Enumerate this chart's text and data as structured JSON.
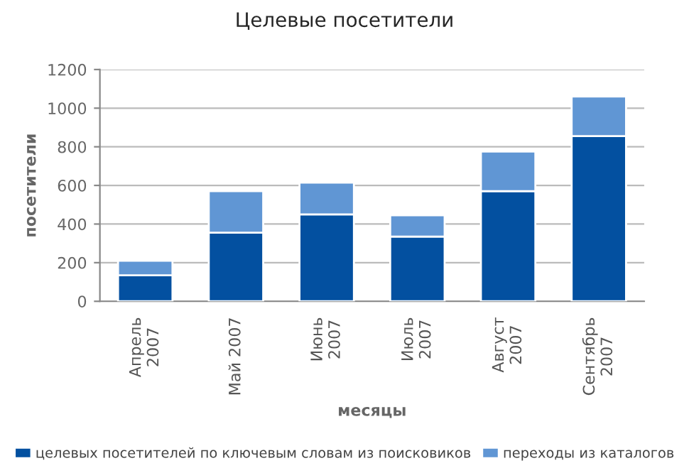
{
  "chart_data": {
    "type": "bar",
    "title": "Целевые посетители",
    "xlabel": "месяцы",
    "ylabel": "посетители",
    "categories": [
      "Апрель\n2007",
      "Май 2007",
      "Июнь\n2007",
      "Июль\n2007",
      "Август\n2007",
      "Сентябрь\n2007"
    ],
    "series": [
      {
        "name": "целевых посетителей по ключевым словам из поисковиков",
        "color": "#0350a0",
        "values": [
          135,
          355,
          450,
          335,
          570,
          855
        ]
      },
      {
        "name": "переходы из каталогов",
        "color": "#6096d4",
        "values": [
          75,
          215,
          165,
          110,
          205,
          205
        ]
      }
    ],
    "stacked": true,
    "ylim": [
      0,
      1200
    ],
    "yticks": [
      0,
      200,
      400,
      600,
      800,
      1000,
      1200
    ],
    "grid": "y",
    "legend": "bottom"
  }
}
